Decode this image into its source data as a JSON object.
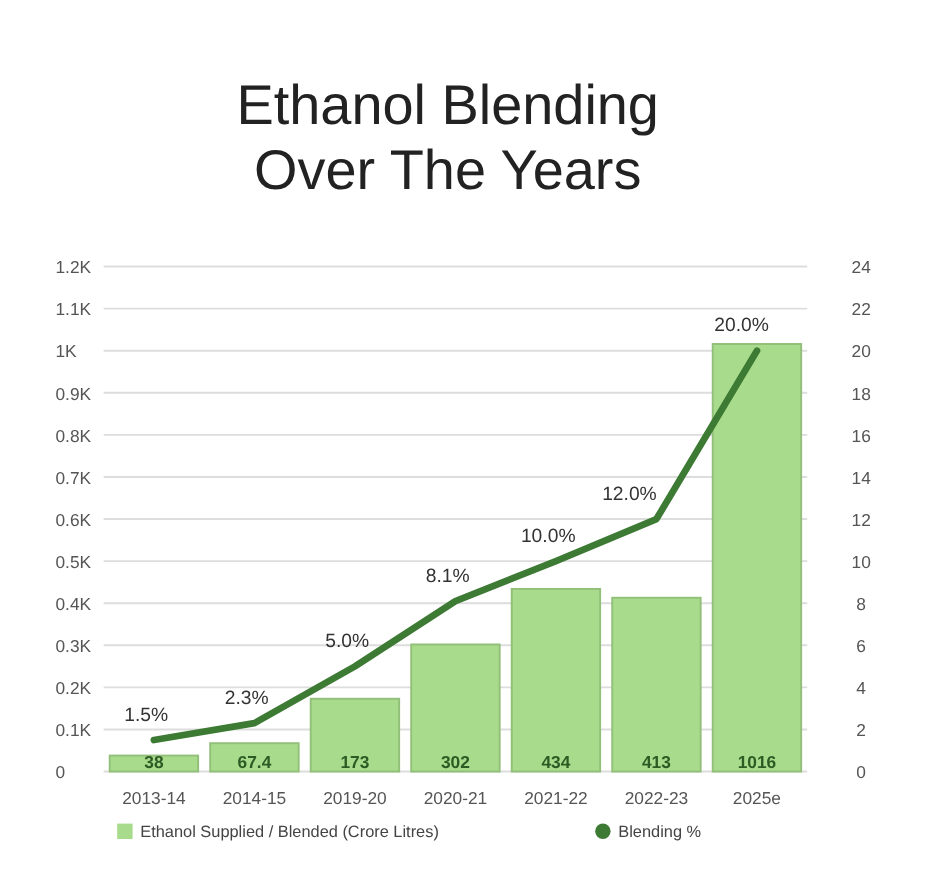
{
  "chart_data": {
    "type": "bar",
    "title": "Ethanol Blending Over The Years",
    "categories": [
      "2013-14",
      "2014-15",
      "2019-20",
      "2020-21",
      "2021-22",
      "2022-23",
      "2025e"
    ],
    "series": [
      {
        "name": "Ethanol Supplied / Blended (Crore Litres)",
        "color": "#a8dc8c",
        "values": [
          38,
          67.4,
          173,
          302,
          434,
          413,
          1016
        ],
        "value_labels": [
          "38",
          "67.4",
          "173",
          "302",
          "434",
          "413",
          "1016"
        ]
      },
      {
        "name": "Blending %",
        "type": "line",
        "axis": "y2",
        "color": "#3d7a34",
        "values": [
          1.5,
          2.3,
          5.0,
          8.1,
          10.0,
          12.0,
          20.0
        ],
        "value_labels": [
          "1.5%",
          "2.3%",
          "5.0%",
          "8.1%",
          "10.0%",
          "12.0%",
          "20.0%"
        ]
      }
    ],
    "ylim": [
      0,
      1200
    ],
    "yticks": [
      0,
      {
        "value": 100,
        "label": "0.1K"
      },
      {
        "value": 200,
        "label": "0.2K"
      },
      {
        "value": 300,
        "label": "0.3K"
      },
      {
        "value": 400,
        "label": "0.4K"
      },
      {
        "value": 500,
        "label": "0.5K"
      },
      {
        "value": 600,
        "label": "0.6K"
      },
      {
        "value": 700,
        "label": "0.7K"
      },
      {
        "value": 800,
        "label": "0.8K"
      },
      {
        "value": 900,
        "label": "0.9K"
      },
      {
        "value": 1000,
        "label": "1K"
      },
      {
        "value": 1100,
        "label": "1.1K"
      },
      {
        "value": 1200,
        "label": "1.2K"
      }
    ],
    "y2lim": [
      0,
      24
    ],
    "y2ticks": [
      0,
      2,
      4,
      6,
      8,
      10,
      12,
      14,
      16,
      18,
      20,
      22,
      24
    ],
    "grid": "y",
    "legend": "bottom",
    "marker": "none",
    "line_style": "solid"
  }
}
